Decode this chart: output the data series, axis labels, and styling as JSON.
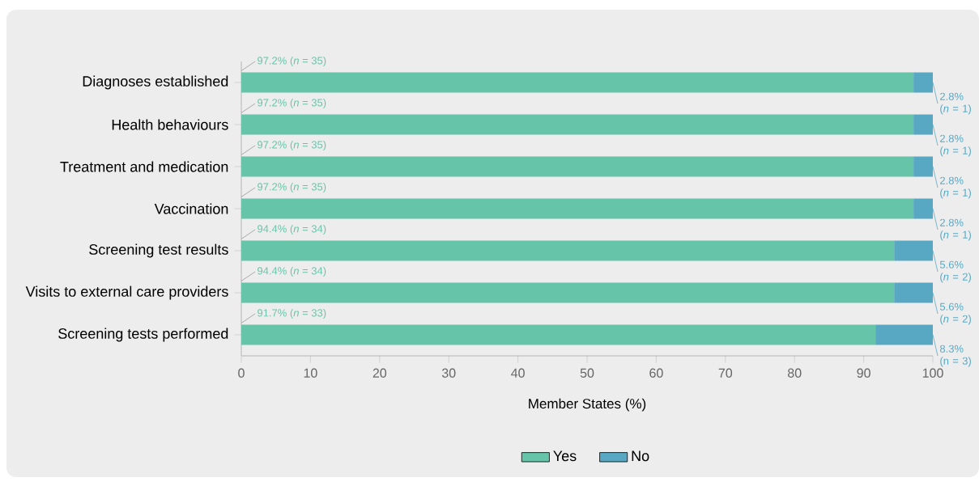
{
  "chart_data": {
    "type": "bar",
    "orientation": "horizontal",
    "stacked": true,
    "categories": [
      "Diagnoses established",
      "Health behaviours",
      "Treatment and medication",
      "Vaccination",
      "Screening test results",
      "Visits to external care providers",
      "Screening tests performed"
    ],
    "series": [
      {
        "name": "Yes",
        "color": "#66c4a8",
        "values": [
          97.2,
          97.2,
          97.2,
          97.2,
          94.4,
          94.4,
          91.7
        ],
        "value_labels": [
          "97.2% (*n* = 35)",
          "97.2% (*n* = 35)",
          "97.2% (*n* = 35)",
          "97.2% (*n* = 35)",
          "94.4% (*n* = 34)",
          "94.4% (*n* = 34)",
          "91.7% (*n* = 33)"
        ]
      },
      {
        "name": "No",
        "color": "#58a8c4",
        "values": [
          2.8,
          2.8,
          2.8,
          2.8,
          5.6,
          5.6,
          8.3
        ],
        "value_labels": [
          "2.8% (*n* = 1)",
          "2.8% (*n* = 1)",
          "2.8% (*n* = 1)",
          "2.8% (*n* = 1)",
          "5.6% (*n* = 2)",
          "5.6% (*n* = 2)",
          "8.3% (n = 3)"
        ]
      }
    ],
    "xlim": [
      0,
      100
    ],
    "xticks": [
      0,
      10,
      20,
      30,
      40,
      50,
      60,
      70,
      80,
      90,
      100
    ],
    "xlabel": "Member States (%)",
    "legend": "bottom"
  }
}
